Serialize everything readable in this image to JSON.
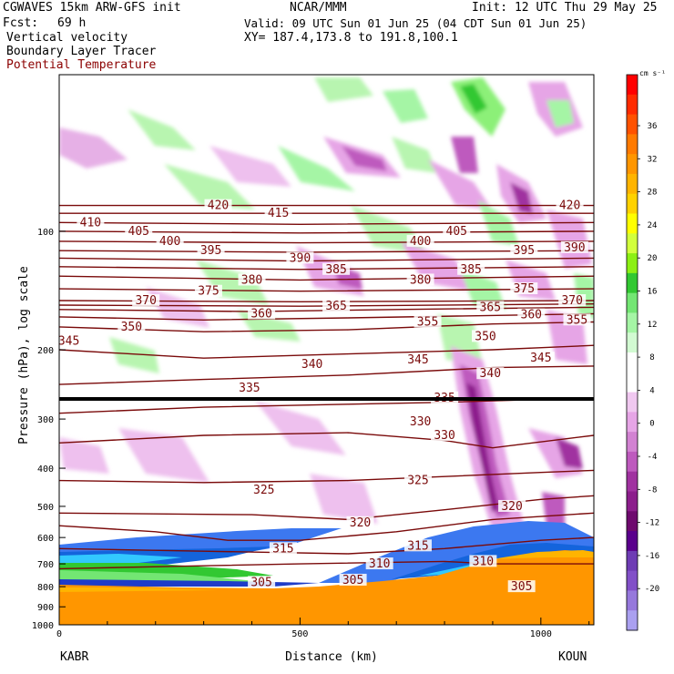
{
  "header": {
    "model": "CGWAVES 15km ARW-GFS init",
    "fcst_label": "Fcst:",
    "fcst_value": "69 h",
    "org": "NCAR/MMM",
    "init": "Init: 12 UTC Thu 29 May 25",
    "valid": "Valid: 09 UTC Sun 01 Jun 25 (04 CDT Sun 01 Jun 25)",
    "xy": "XY= 187.4,173.8 to 191.8,100.1",
    "field1": "Vertical velocity",
    "field2": "Boundary Layer Tracer",
    "field3": "Potential Temperature"
  },
  "colors": {
    "theta": "#7a0a0a",
    "text_red": "#8b0000"
  },
  "chart_data": {
    "type": "heatmap",
    "title": "",
    "xlabel": "Distance (km)",
    "ylabel": "Pressure (hPa), log scale",
    "x_range": [
      0,
      1110
    ],
    "y_range": [
      1000,
      40
    ],
    "y_scale": "log",
    "x_ticks": [
      0,
      500,
      1000
    ],
    "y_ticks": [
      100,
      200,
      300,
      400,
      500,
      600,
      700,
      800,
      900,
      1000
    ],
    "endpoint_left": "KABR",
    "endpoint_right": "KOUN",
    "colorbar": {
      "unit": "cm s⁻¹",
      "labels": [
        "36",
        "32",
        "28",
        "24",
        "20",
        "16",
        "12",
        "8",
        "4",
        "0",
        "-4",
        "-8",
        "-12",
        "-16",
        "-20"
      ],
      "colors": [
        "#ff0000",
        "#ff2b00",
        "#ff5200",
        "#ff7a00",
        "#ff9600",
        "#ffb400",
        "#ffd200",
        "#ffff00",
        "#d2ff3c",
        "#8cf014",
        "#32c832",
        "#73e673",
        "#a5f5a5",
        "#d2fad2",
        "#ffffff",
        "#ffffff",
        "#f0c8f0",
        "#e6a5e6",
        "#d282d2",
        "#be5abe",
        "#a032a0",
        "#8c1e8c",
        "#6e0a6e",
        "#5a008c",
        "#6e3cb4",
        "#8250c8",
        "#9678dc",
        "#aaa0f0"
      ]
    },
    "theta_series": [
      {
        "name": "305",
        "values": [
          [
            0,
            720
          ],
          [
            250,
            710
          ],
          [
            500,
            700
          ],
          [
            800,
            690
          ],
          [
            900,
            700
          ],
          [
            1110,
            700
          ]
        ]
      },
      {
        "name": "310",
        "values": [
          [
            0,
            640
          ],
          [
            300,
            650
          ],
          [
            600,
            660
          ],
          [
            800,
            640
          ],
          [
            1000,
            610
          ],
          [
            1110,
            600
          ]
        ]
      },
      {
        "name": "315",
        "values": [
          [
            0,
            560
          ],
          [
            200,
            580
          ],
          [
            350,
            610
          ],
          [
            500,
            610
          ],
          [
            700,
            580
          ],
          [
            900,
            540
          ],
          [
            1110,
            520
          ]
        ]
      },
      {
        "name": "320",
        "values": [
          [
            0,
            520
          ],
          [
            400,
            525
          ],
          [
            600,
            540
          ],
          [
            800,
            510
          ],
          [
            1000,
            480
          ],
          [
            1110,
            470
          ]
        ]
      },
      {
        "name": "325",
        "values": [
          [
            0,
            430
          ],
          [
            300,
            435
          ],
          [
            600,
            430
          ],
          [
            800,
            420
          ],
          [
            1000,
            410
          ],
          [
            1110,
            405
          ]
        ]
      },
      {
        "name": "330",
        "values": [
          [
            0,
            345
          ],
          [
            300,
            330
          ],
          [
            600,
            325
          ],
          [
            800,
            340
          ],
          [
            900,
            355
          ],
          [
            1110,
            330
          ]
        ]
      },
      {
        "name": "335",
        "values": [
          [
            0,
            290
          ],
          [
            300,
            280
          ],
          [
            600,
            275
          ],
          [
            800,
            272
          ],
          [
            1110,
            265
          ]
        ]
      },
      {
        "name": "340",
        "values": [
          [
            0,
            245
          ],
          [
            300,
            238
          ],
          [
            600,
            232
          ],
          [
            900,
            222
          ],
          [
            1110,
            220
          ]
        ]
      },
      {
        "name": "345",
        "values": [
          [
            0,
            200
          ],
          [
            300,
            210
          ],
          [
            600,
            205
          ],
          [
            900,
            200
          ],
          [
            1110,
            195
          ]
        ]
      },
      {
        "name": "350",
        "values": [
          [
            0,
            175
          ],
          [
            300,
            180
          ],
          [
            600,
            178
          ],
          [
            900,
            172
          ],
          [
            1110,
            170
          ]
        ]
      },
      {
        "name": "355",
        "values": [
          [
            0,
            165
          ],
          [
            300,
            168
          ],
          [
            600,
            166
          ],
          [
            1110,
            162
          ]
        ]
      },
      {
        "name": "360",
        "values": [
          [
            0,
            158
          ],
          [
            400,
            160
          ],
          [
            700,
            158
          ],
          [
            1110,
            156
          ]
        ]
      },
      {
        "name": "365",
        "values": [
          [
            0,
            154
          ],
          [
            500,
            155
          ],
          [
            1110,
            153
          ]
        ]
      },
      {
        "name": "370",
        "values": [
          [
            0,
            150
          ],
          [
            500,
            151
          ],
          [
            1110,
            150
          ]
        ]
      },
      {
        "name": "375",
        "values": [
          [
            0,
            140
          ],
          [
            500,
            142
          ],
          [
            1110,
            140
          ]
        ]
      },
      {
        "name": "380",
        "values": [
          [
            0,
            130
          ],
          [
            500,
            133
          ],
          [
            1110,
            130
          ]
        ]
      },
      {
        "name": "385",
        "values": [
          [
            0,
            123
          ],
          [
            500,
            125
          ],
          [
            1110,
            123
          ]
        ]
      },
      {
        "name": "390",
        "values": [
          [
            0,
            117
          ],
          [
            500,
            119
          ],
          [
            1110,
            117
          ]
        ]
      },
      {
        "name": "395",
        "values": [
          [
            0,
            112
          ],
          [
            500,
            113
          ],
          [
            1110,
            112
          ]
        ]
      },
      {
        "name": "400",
        "values": [
          [
            0,
            106
          ],
          [
            500,
            107
          ],
          [
            1110,
            106
          ]
        ]
      },
      {
        "name": "405",
        "values": [
          [
            0,
            100
          ],
          [
            500,
            101
          ],
          [
            1110,
            100
          ]
        ]
      },
      {
        "name": "410",
        "values": [
          [
            0,
            95
          ],
          [
            500,
            96
          ],
          [
            1110,
            95
          ]
        ]
      },
      {
        "name": "415",
        "values": [
          [
            0,
            90
          ],
          [
            500,
            90
          ],
          [
            1110,
            90
          ]
        ]
      },
      {
        "name": "420",
        "values": [
          [
            0,
            86
          ],
          [
            500,
            86
          ],
          [
            1110,
            86
          ]
        ]
      }
    ],
    "contour_labels": [
      {
        "t": "420",
        "x": 330,
        "p": 86
      },
      {
        "t": "415",
        "x": 455,
        "p": 90
      },
      {
        "t": "420",
        "x": 1060,
        "p": 86
      },
      {
        "t": "410",
        "x": 65,
        "p": 95
      },
      {
        "t": "405",
        "x": 165,
        "p": 100
      },
      {
        "t": "400",
        "x": 230,
        "p": 106
      },
      {
        "t": "395",
        "x": 315,
        "p": 112
      },
      {
        "t": "390",
        "x": 500,
        "p": 117
      },
      {
        "t": "385",
        "x": 575,
        "p": 125
      },
      {
        "t": "380",
        "x": 400,
        "p": 133
      },
      {
        "t": "375",
        "x": 310,
        "p": 142
      },
      {
        "t": "370",
        "x": 180,
        "p": 150
      },
      {
        "t": "400",
        "x": 750,
        "p": 106
      },
      {
        "t": "405",
        "x": 825,
        "p": 100
      },
      {
        "t": "395",
        "x": 965,
        "p": 112
      },
      {
        "t": "390",
        "x": 1070,
        "p": 110
      },
      {
        "t": "380",
        "x": 750,
        "p": 133
      },
      {
        "t": "385",
        "x": 855,
        "p": 125
      },
      {
        "t": "375",
        "x": 965,
        "p": 140
      },
      {
        "t": "370",
        "x": 1065,
        "p": 150
      },
      {
        "t": "365",
        "x": 575,
        "p": 155
      },
      {
        "t": "365",
        "x": 895,
        "p": 156
      },
      {
        "t": "360",
        "x": 420,
        "p": 162
      },
      {
        "t": "360",
        "x": 980,
        "p": 163
      },
      {
        "t": "355",
        "x": 765,
        "p": 170
      },
      {
        "t": "355",
        "x": 1075,
        "p": 168
      },
      {
        "t": "350",
        "x": 150,
        "p": 175
      },
      {
        "t": "350",
        "x": 885,
        "p": 185
      },
      {
        "t": "345",
        "x": 20,
        "p": 190
      },
      {
        "t": "345",
        "x": 745,
        "p": 212
      },
      {
        "t": "345",
        "x": 1000,
        "p": 210
      },
      {
        "t": "340",
        "x": 525,
        "p": 218
      },
      {
        "t": "340",
        "x": 895,
        "p": 230
      },
      {
        "t": "335",
        "x": 395,
        "p": 250
      },
      {
        "t": "335",
        "x": 800,
        "p": 265
      },
      {
        "t": "330",
        "x": 800,
        "p": 330
      },
      {
        "t": "330",
        "x": 750,
        "p": 305
      },
      {
        "t": "325",
        "x": 425,
        "p": 455
      },
      {
        "t": "325",
        "x": 745,
        "p": 430
      },
      {
        "t": "320",
        "x": 625,
        "p": 550
      },
      {
        "t": "320",
        "x": 940,
        "p": 500
      },
      {
        "t": "315",
        "x": 465,
        "p": 640
      },
      {
        "t": "315",
        "x": 745,
        "p": 630
      },
      {
        "t": "310",
        "x": 665,
        "p": 700
      },
      {
        "t": "310",
        "x": 880,
        "p": 690
      },
      {
        "t": "305",
        "x": 420,
        "p": 780
      },
      {
        "t": "305",
        "x": 610,
        "p": 770
      },
      {
        "t": "305",
        "x": 960,
        "p": 800
      }
    ],
    "grid": false
  }
}
